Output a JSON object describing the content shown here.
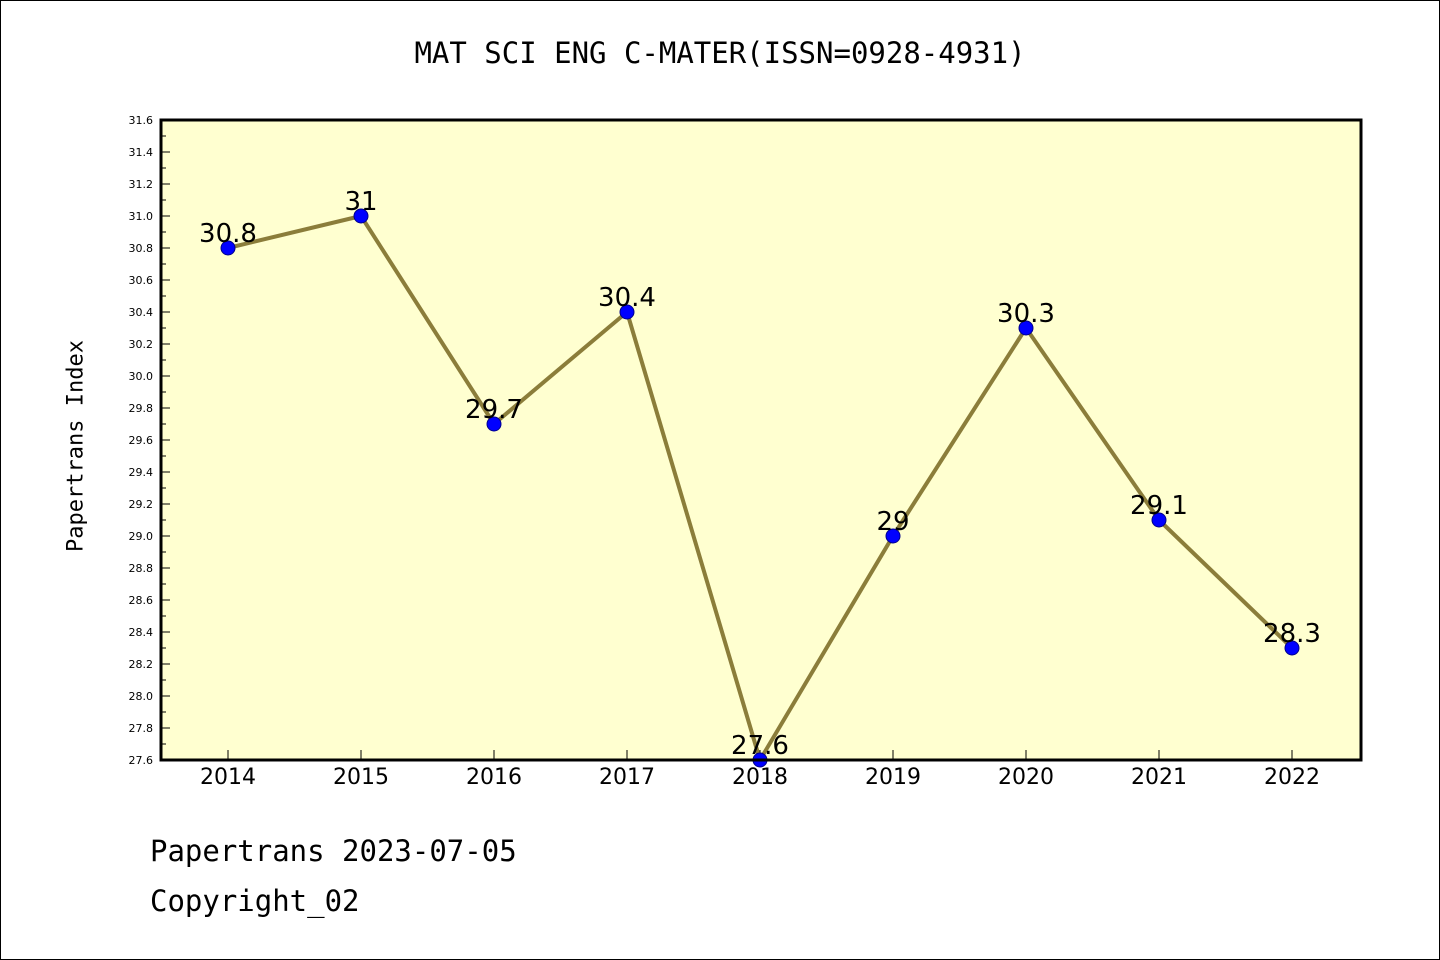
{
  "chart_data": {
    "type": "line",
    "title": "MAT SCI ENG C-MATER(ISSN=0928-4931)",
    "xlabel": "",
    "ylabel": "Papertrans Index",
    "categories": [
      "2014",
      "2015",
      "2016",
      "2017",
      "2018",
      "2019",
      "2020",
      "2021",
      "2022"
    ],
    "values": [
      30.8,
      31,
      29.7,
      30.4,
      27.6,
      29,
      30.3,
      29.1,
      28.3
    ],
    "data_labels": [
      "30.8",
      "31",
      "29.7",
      "30.4",
      "27.6",
      "29",
      "30.3",
      "29.1",
      "28.3"
    ],
    "ylim": [
      27.6,
      31.6
    ],
    "yticks": [
      "27.6",
      "27.8",
      "28.0",
      "28.2",
      "28.4",
      "28.6",
      "28.8",
      "29.0",
      "29.2",
      "29.4",
      "29.6",
      "29.8",
      "30.0",
      "30.2",
      "30.4",
      "30.6",
      "30.8",
      "31.0",
      "31.2",
      "31.4",
      "31.6"
    ],
    "grid": false,
    "colors": {
      "plot_background": "#FFFFD0",
      "line": "#8B7D3A",
      "marker": "#0000FF"
    }
  },
  "footer": {
    "line1": "Papertrans 2023-07-05",
    "line2": "Copyright_02"
  }
}
